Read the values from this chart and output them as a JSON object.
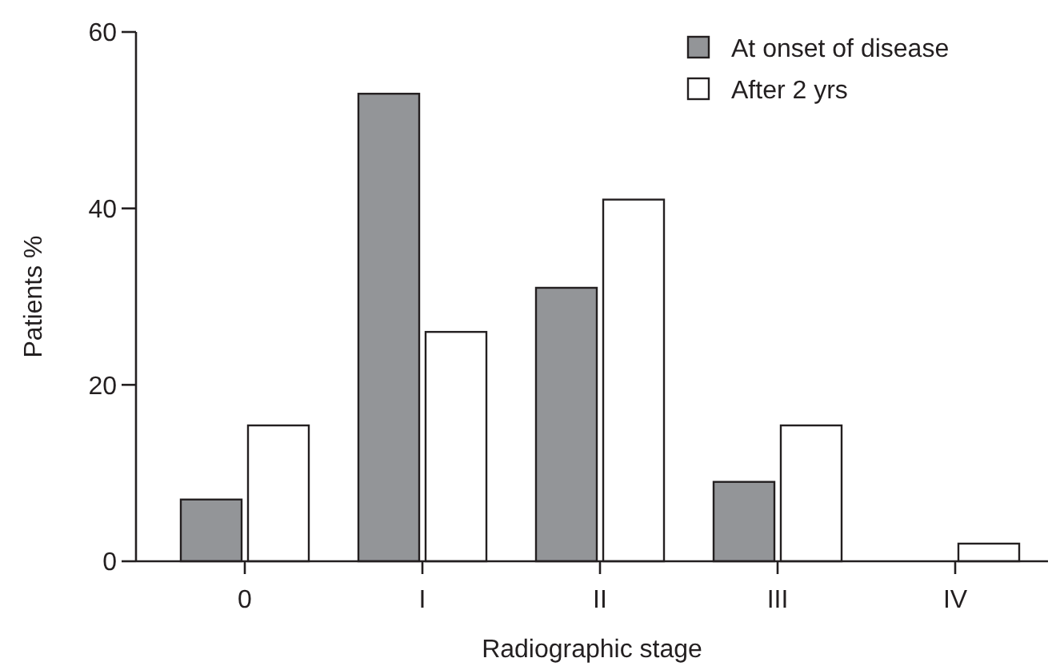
{
  "chart_data": {
    "type": "bar",
    "xlabel": "Radiographic stage",
    "ylabel": "Patients %",
    "categories": [
      "0",
      "I",
      "II",
      "III",
      "IV"
    ],
    "series": [
      {
        "name": "At onset of disease",
        "color": "#939598",
        "values": [
          7,
          53,
          31,
          9,
          0
        ]
      },
      {
        "name": "After 2 yrs",
        "color": "#ffffff",
        "values": [
          15.4,
          26,
          41,
          15.4,
          2
        ]
      }
    ],
    "ylim": [
      0,
      60
    ],
    "yticks": [
      0,
      20,
      40,
      60
    ],
    "grid": false,
    "legend": "top right"
  }
}
